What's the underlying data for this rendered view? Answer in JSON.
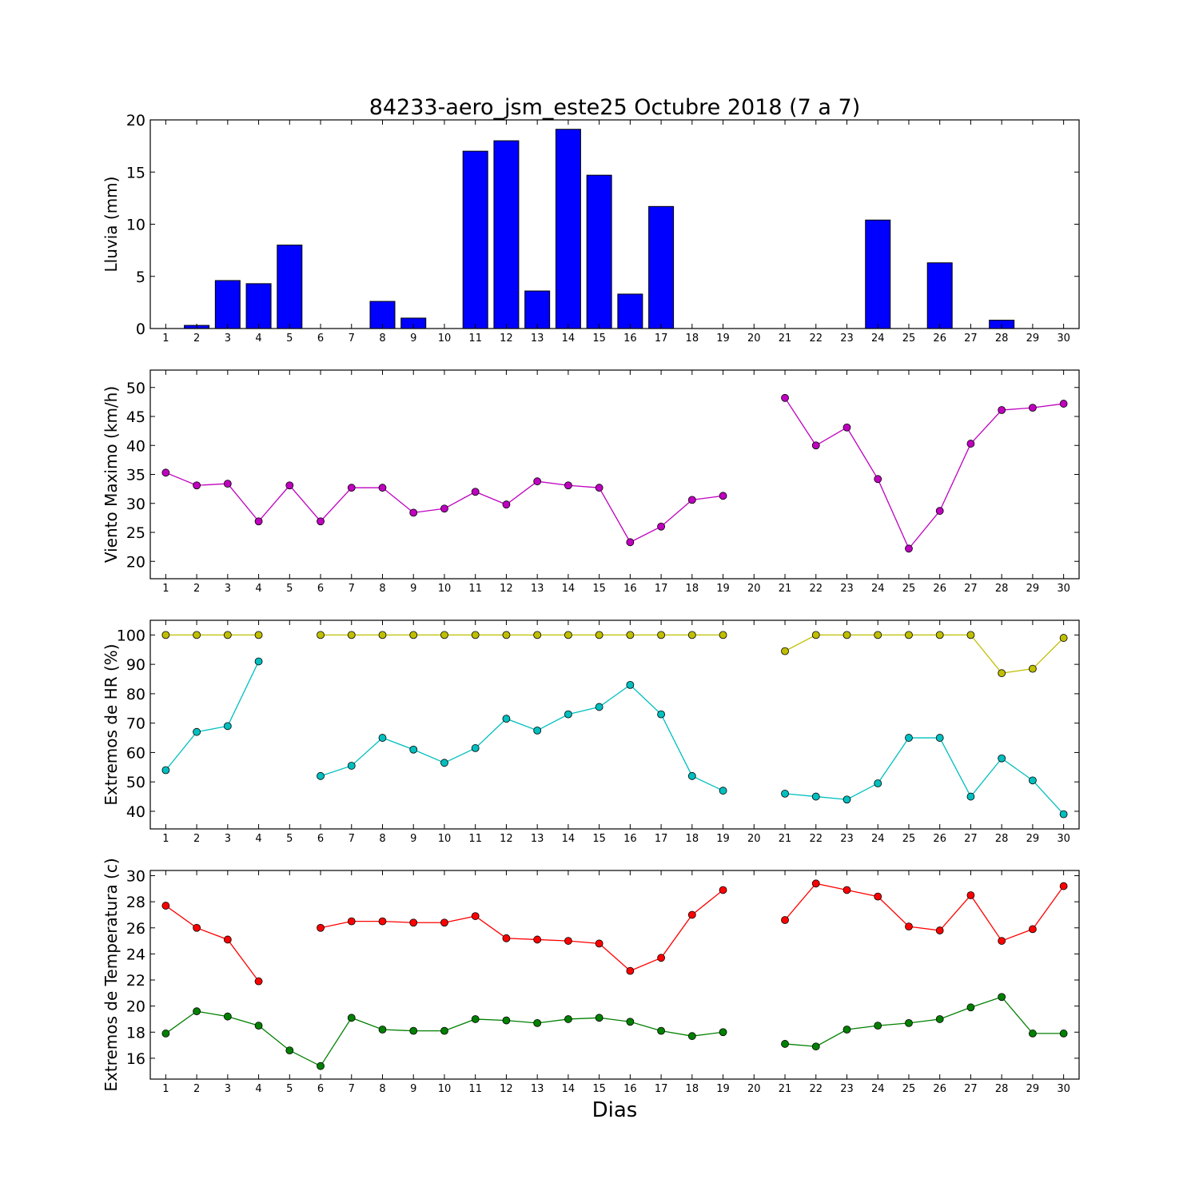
{
  "chart_data": [
    {
      "type": "bar",
      "title": "84233-aero_jsm_este25 Octubre 2018  (7 a 7)",
      "ylabel": "Lluvia (mm)",
      "xlabel": "",
      "ylim": [
        0,
        20
      ],
      "yticks": [
        0,
        5,
        10,
        15,
        20
      ],
      "categories": [
        "1",
        "2",
        "3",
        "4",
        "5",
        "6",
        "7",
        "8",
        "9",
        "10",
        "11",
        "12",
        "13",
        "14",
        "15",
        "16",
        "17",
        "18",
        "19",
        "20",
        "21",
        "22",
        "23",
        "24",
        "25",
        "26",
        "27",
        "28",
        "29",
        "30"
      ],
      "series": [
        {
          "color": "#0000ff",
          "values": [
            0,
            0.3,
            4.6,
            4.3,
            8.0,
            0,
            0,
            2.6,
            1.0,
            null,
            17.0,
            18.0,
            3.6,
            19.1,
            14.7,
            3.3,
            11.7,
            0,
            0,
            null,
            0,
            0,
            0,
            10.4,
            0,
            6.3,
            0,
            0.8,
            0,
            0
          ]
        }
      ],
      "grid": false
    },
    {
      "type": "line",
      "ylabel": "Viento Maximo (km/h)",
      "ylim": [
        17,
        53
      ],
      "yticks": [
        20,
        25,
        30,
        35,
        40,
        45,
        50
      ],
      "categories": [
        "1",
        "2",
        "3",
        "4",
        "5",
        "6",
        "7",
        "8",
        "9",
        "10",
        "11",
        "12",
        "13",
        "14",
        "15",
        "16",
        "17",
        "18",
        "19",
        "20",
        "21",
        "22",
        "23",
        "24",
        "25",
        "26",
        "27",
        "28",
        "29",
        "30"
      ],
      "series": [
        {
          "color": "#bf00bf",
          "values": [
            35.3,
            33.1,
            33.4,
            26.9,
            33.1,
            26.9,
            32.7,
            32.7,
            28.4,
            29.1,
            32.0,
            29.8,
            33.8,
            33.1,
            32.7,
            23.3,
            26.0,
            30.6,
            31.3,
            null,
            48.2,
            40.0,
            43.1,
            34.2,
            22.2,
            28.7,
            40.3,
            46.1,
            46.5,
            47.2
          ]
        }
      ],
      "grid": false
    },
    {
      "type": "line",
      "ylabel": "Extremos de HR (%)",
      "ylim": [
        34,
        105
      ],
      "yticks": [
        40,
        50,
        60,
        70,
        80,
        90,
        100
      ],
      "categories": [
        "1",
        "2",
        "3",
        "4",
        "5",
        "6",
        "7",
        "8",
        "9",
        "10",
        "11",
        "12",
        "13",
        "14",
        "15",
        "16",
        "17",
        "18",
        "19",
        "20",
        "21",
        "22",
        "23",
        "24",
        "25",
        "26",
        "27",
        "28",
        "29",
        "30"
      ],
      "series": [
        {
          "color": "#bfbf00",
          "values": [
            100,
            100,
            100,
            100,
            null,
            100,
            100,
            100,
            100,
            100,
            100,
            100,
            100,
            100,
            100,
            100,
            100,
            100,
            100,
            null,
            94.5,
            100,
            100,
            100,
            100,
            100,
            100,
            87,
            88.5,
            99
          ]
        },
        {
          "color": "#00bfbf",
          "values": [
            54,
            67,
            69,
            91,
            null,
            52,
            55.5,
            65,
            61,
            56.5,
            61.5,
            71.5,
            67.5,
            73,
            75.5,
            83,
            73,
            52,
            47,
            null,
            46,
            45,
            44,
            49.5,
            65,
            65,
            45,
            58,
            50.5,
            39
          ]
        }
      ],
      "grid": false
    },
    {
      "type": "line",
      "ylabel": "Extremos de Temperatura (c)",
      "xlabel": "Dias",
      "ylim": [
        14.4,
        30.4
      ],
      "yticks": [
        16,
        18,
        20,
        22,
        24,
        26,
        28,
        30
      ],
      "categories": [
        "1",
        "2",
        "3",
        "4",
        "5",
        "6",
        "7",
        "8",
        "9",
        "10",
        "11",
        "12",
        "13",
        "14",
        "15",
        "16",
        "17",
        "18",
        "19",
        "20",
        "21",
        "22",
        "23",
        "24",
        "25",
        "26",
        "27",
        "28",
        "29",
        "30"
      ],
      "series": [
        {
          "color": "#ff0000",
          "values": [
            27.7,
            26.0,
            25.1,
            21.9,
            null,
            26.0,
            26.5,
            26.5,
            26.4,
            26.4,
            26.9,
            25.2,
            25.1,
            25.0,
            24.8,
            22.7,
            23.7,
            27.0,
            28.9,
            null,
            26.6,
            29.4,
            28.9,
            28.4,
            26.1,
            25.8,
            28.5,
            25.0,
            25.9,
            29.2
          ]
        },
        {
          "color": "#008000",
          "values": [
            17.9,
            19.6,
            19.2,
            18.5,
            16.6,
            15.4,
            19.1,
            18.2,
            18.1,
            18.1,
            19.0,
            18.9,
            18.7,
            19.0,
            19.1,
            18.8,
            18.1,
            17.7,
            18.0,
            null,
            17.1,
            16.9,
            18.2,
            18.5,
            18.7,
            19.0,
            19.9,
            20.7,
            17.9,
            17.9
          ]
        }
      ],
      "grid": false
    }
  ]
}
